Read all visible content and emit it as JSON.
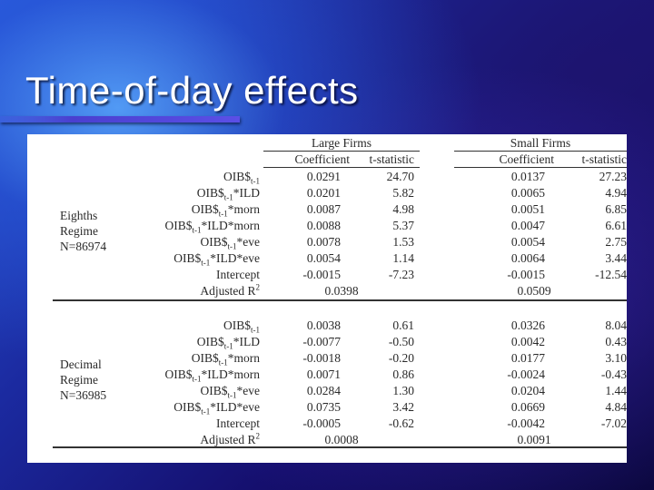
{
  "slide": {
    "title": "Time-of-day effects"
  },
  "table": {
    "groups": [
      "Large Firms",
      "Small Firms"
    ],
    "subheaders": [
      "Coefficient",
      "t-statistic",
      "Coefficient",
      "t-statistic"
    ],
    "row_labels": [
      {
        "pre": "OIB$",
        "sub": "t-1",
        "post": ""
      },
      {
        "pre": "OIB$",
        "sub": "t-1",
        "post": "*ILD"
      },
      {
        "pre": "OIB$",
        "sub": "t-1",
        "post": "*morn"
      },
      {
        "pre": "OIB$",
        "sub": "t-1",
        "post": "*ILD*morn"
      },
      {
        "pre": "OIB$",
        "sub": "t-1",
        "post": "*eve"
      },
      {
        "pre": "OIB$",
        "sub": "t-1",
        "post": "*ILD*eve"
      },
      {
        "pre": "Intercept",
        "sub": "",
        "post": ""
      }
    ],
    "adjusted_label": {
      "pre": "Adjusted R",
      "sup": "2"
    },
    "regimes": [
      {
        "label_lines": [
          "Eighths",
          "Regime",
          "N=86974"
        ],
        "rows": [
          [
            "0.0291",
            "24.70",
            "0.0137",
            "27.23"
          ],
          [
            "0.0201",
            "5.82",
            "0.0065",
            "4.94"
          ],
          [
            "0.0087",
            "4.98",
            "0.0051",
            "6.85"
          ],
          [
            "0.0088",
            "5.37",
            "0.0047",
            "6.61"
          ],
          [
            "0.0078",
            "1.53",
            "0.0054",
            "2.75"
          ],
          [
            "0.0054",
            "1.14",
            "0.0064",
            "3.44"
          ],
          [
            "-0.0015",
            "-7.23",
            "-0.0015",
            "-12.54"
          ]
        ],
        "adj_r2": [
          "0.0398",
          "0.0509"
        ]
      },
      {
        "label_lines": [
          "Decimal",
          "Regime",
          "N=36985"
        ],
        "rows": [
          [
            "0.0038",
            "0.61",
            "0.0326",
            "8.04"
          ],
          [
            "-0.0077",
            "-0.50",
            "0.0042",
            "0.43"
          ],
          [
            "-0.0018",
            "-0.20",
            "0.0177",
            "3.10"
          ],
          [
            "0.0071",
            "0.86",
            "-0.0024",
            "-0.43"
          ],
          [
            "0.0284",
            "1.30",
            "0.0204",
            "1.44"
          ],
          [
            "0.0735",
            "3.42",
            "0.0669",
            "4.84"
          ],
          [
            "-0.0005",
            "-0.62",
            "-0.0042",
            "-7.02"
          ]
        ],
        "adj_r2": [
          "0.0008",
          "0.0091"
        ]
      }
    ]
  }
}
